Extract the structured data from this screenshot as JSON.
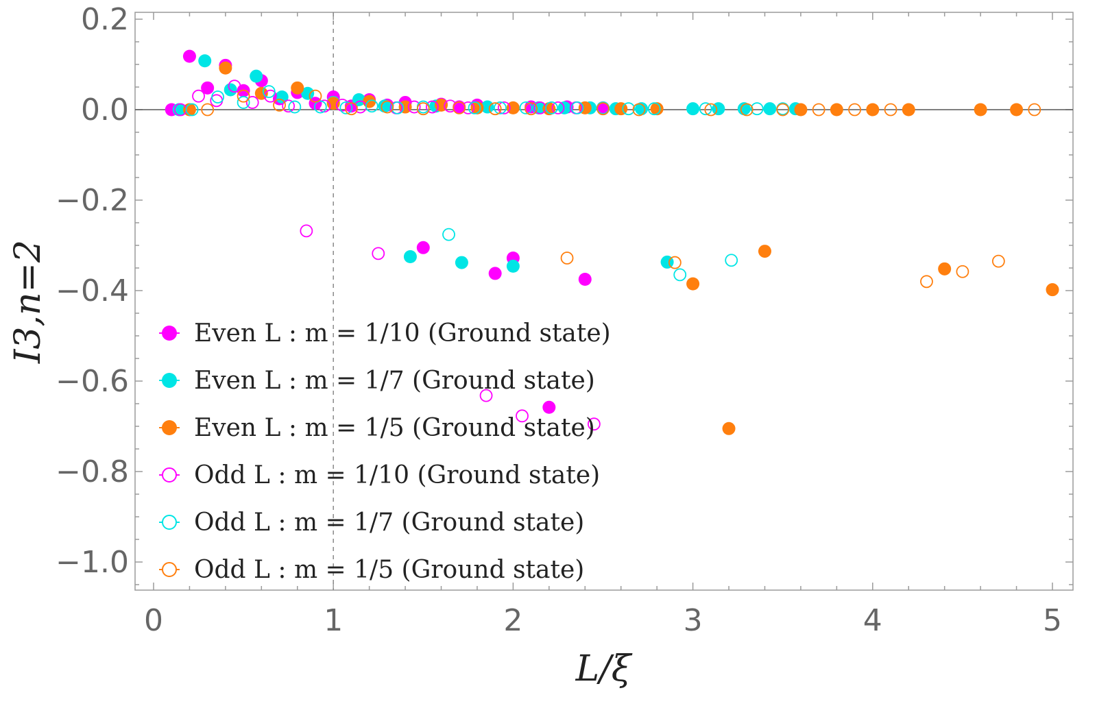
{
  "chart_data": {
    "type": "scatter",
    "title": "",
    "xlabel": "L/ξ",
    "ylabel": "I3,n=2",
    "xlim": [
      0,
      5.1
    ],
    "ylim": [
      -1.06,
      0.22
    ],
    "xticks": [
      "0",
      "1",
      "2",
      "3",
      "4",
      "5"
    ],
    "xtick_values": [
      0,
      1,
      2,
      3,
      4,
      5
    ],
    "yticks": [
      "0.2",
      "0.0",
      "−0.2",
      "−0.4",
      "−0.6",
      "−0.8",
      "−1.0"
    ],
    "ytick_values": [
      0.2,
      0.0,
      -0.2,
      -0.4,
      -0.6,
      -0.8,
      -1.0
    ],
    "reference_lines": {
      "vertical_dashed_x": 1,
      "horizontal_y": 0
    },
    "legend_position": "bottom-left",
    "series": [
      {
        "name": "Even L : m = 1/10 (Ground state)",
        "color": "#ff00ff",
        "filled": true,
        "points": [
          [
            0.1,
            0.0
          ],
          [
            0.2,
            0.118
          ],
          [
            0.3,
            0.048
          ],
          [
            0.4,
            0.098
          ],
          [
            0.5,
            0.042
          ],
          [
            0.6,
            0.064
          ],
          [
            0.7,
            0.024
          ],
          [
            0.8,
            0.038
          ],
          [
            0.9,
            0.014
          ],
          [
            1.0,
            0.028
          ],
          [
            1.1,
            0.008
          ],
          [
            1.2,
            0.022
          ],
          [
            1.3,
            0.01
          ],
          [
            1.4,
            0.016
          ],
          [
            1.5,
            -0.305
          ],
          [
            1.6,
            0.012
          ],
          [
            1.7,
            0.006
          ],
          [
            1.8,
            0.01
          ],
          [
            1.9,
            -0.362
          ],
          [
            2.0,
            -0.328
          ],
          [
            2.1,
            0.006
          ],
          [
            2.2,
            -0.658
          ],
          [
            2.3,
            0.006
          ],
          [
            2.4,
            -0.375
          ],
          [
            2.5,
            0.004
          ]
        ]
      },
      {
        "name": "Even L : m = 1/7 (Ground state)",
        "color": "#00e5e5",
        "filled": true,
        "points": [
          [
            0.142,
            0.0
          ],
          [
            0.285,
            0.108
          ],
          [
            0.428,
            0.044
          ],
          [
            0.571,
            0.074
          ],
          [
            0.714,
            0.028
          ],
          [
            0.857,
            0.036
          ],
          [
            1.0,
            0.016
          ],
          [
            1.142,
            0.022
          ],
          [
            1.285,
            0.008
          ],
          [
            1.428,
            -0.325
          ],
          [
            1.571,
            0.008
          ],
          [
            1.714,
            -0.338
          ],
          [
            1.857,
            0.006
          ],
          [
            2.0,
            -0.346
          ],
          [
            2.142,
            0.004
          ],
          [
            2.285,
            0.004
          ],
          [
            2.428,
            0.004
          ],
          [
            2.571,
            0.002
          ],
          [
            2.714,
            0.002
          ],
          [
            2.857,
            -0.337
          ],
          [
            3.0,
            0.002
          ],
          [
            3.142,
            0.002
          ],
          [
            3.285,
            0.002
          ],
          [
            3.428,
            0.002
          ],
          [
            3.571,
            0.002
          ]
        ]
      },
      {
        "name": "Even L : m = 1/5 (Ground state)",
        "color": "#ff7f0e",
        "filled": true,
        "points": [
          [
            0.2,
            0.0
          ],
          [
            0.4,
            0.092
          ],
          [
            0.6,
            0.036
          ],
          [
            0.8,
            0.048
          ],
          [
            1.0,
            0.014
          ],
          [
            1.2,
            0.018
          ],
          [
            1.4,
            0.006
          ],
          [
            1.6,
            0.01
          ],
          [
            1.8,
            0.004
          ],
          [
            2.0,
            0.004
          ],
          [
            2.2,
            0.002
          ],
          [
            2.4,
            0.004
          ],
          [
            2.6,
            0.002
          ],
          [
            2.8,
            0.002
          ],
          [
            3.0,
            -0.385
          ],
          [
            3.2,
            -0.705
          ],
          [
            3.4,
            -0.313
          ],
          [
            3.6,
            0.0
          ],
          [
            3.8,
            0.0
          ],
          [
            4.0,
            0.0
          ],
          [
            4.2,
            0.0
          ],
          [
            4.4,
            -0.352
          ],
          [
            4.6,
            0.0
          ],
          [
            4.8,
            0.0
          ],
          [
            5.0,
            -0.398
          ]
        ]
      },
      {
        "name": "Odd L : m = 1/10 (Ground state)",
        "color": "#ff00ff",
        "filled": false,
        "points": [
          [
            0.15,
            0.0
          ],
          [
            0.25,
            0.03
          ],
          [
            0.35,
            0.02
          ],
          [
            0.45,
            0.052
          ],
          [
            0.55,
            0.016
          ],
          [
            0.65,
            0.03
          ],
          [
            0.75,
            0.008
          ],
          [
            0.85,
            -0.268
          ],
          [
            0.95,
            0.008
          ],
          [
            1.05,
            0.01
          ],
          [
            1.15,
            0.006
          ],
          [
            1.25,
            -0.318
          ],
          [
            1.35,
            0.004
          ],
          [
            1.45,
            0.006
          ],
          [
            1.55,
            0.006
          ],
          [
            1.65,
            0.008
          ],
          [
            1.75,
            0.004
          ],
          [
            1.85,
            -0.632
          ],
          [
            1.95,
            0.004
          ],
          [
            2.05,
            -0.677
          ],
          [
            2.15,
            0.004
          ],
          [
            2.25,
            0.004
          ],
          [
            2.35,
            0.004
          ],
          [
            2.45,
            -0.695
          ]
        ]
      },
      {
        "name": "Odd L : m = 1/7 (Ground state)",
        "color": "#00e5e5",
        "filled": false,
        "points": [
          [
            0.214,
            0.0
          ],
          [
            0.357,
            0.028
          ],
          [
            0.5,
            0.016
          ],
          [
            0.642,
            0.04
          ],
          [
            0.785,
            0.006
          ],
          [
            0.928,
            0.006
          ],
          [
            1.071,
            0.004
          ],
          [
            1.214,
            0.008
          ],
          [
            1.357,
            0.004
          ],
          [
            1.5,
            0.006
          ],
          [
            1.642,
            -0.276
          ],
          [
            1.785,
            0.004
          ],
          [
            1.928,
            0.004
          ],
          [
            2.071,
            0.004
          ],
          [
            2.214,
            0.004
          ],
          [
            2.357,
            0.004
          ],
          [
            2.5,
            0.004
          ],
          [
            2.642,
            0.002
          ],
          [
            2.785,
            0.002
          ],
          [
            2.928,
            -0.365
          ],
          [
            3.071,
            0.002
          ],
          [
            3.214,
            -0.333
          ],
          [
            3.357,
            0.002
          ],
          [
            3.5,
            0.002
          ]
        ]
      },
      {
        "name": "Odd L : m = 1/5 (Ground state)",
        "color": "#ff7f0e",
        "filled": false,
        "points": [
          [
            0.3,
            0.0
          ],
          [
            0.5,
            0.03
          ],
          [
            0.7,
            0.01
          ],
          [
            0.9,
            0.03
          ],
          [
            1.1,
            0.002
          ],
          [
            1.3,
            0.006
          ],
          [
            1.5,
            0.002
          ],
          [
            1.7,
            0.004
          ],
          [
            1.9,
            0.002
          ],
          [
            2.1,
            0.002
          ],
          [
            2.3,
            -0.328
          ],
          [
            2.5,
            0.002
          ],
          [
            2.7,
            0.0
          ],
          [
            2.9,
            -0.338
          ],
          [
            3.1,
            0.0
          ],
          [
            3.3,
            0.0
          ],
          [
            3.5,
            0.0
          ],
          [
            3.7,
            0.0
          ],
          [
            3.9,
            0.0
          ],
          [
            4.1,
            0.0
          ],
          [
            4.3,
            -0.38
          ],
          [
            4.5,
            -0.358
          ],
          [
            4.7,
            -0.335
          ],
          [
            4.9,
            0.0
          ]
        ]
      }
    ]
  }
}
